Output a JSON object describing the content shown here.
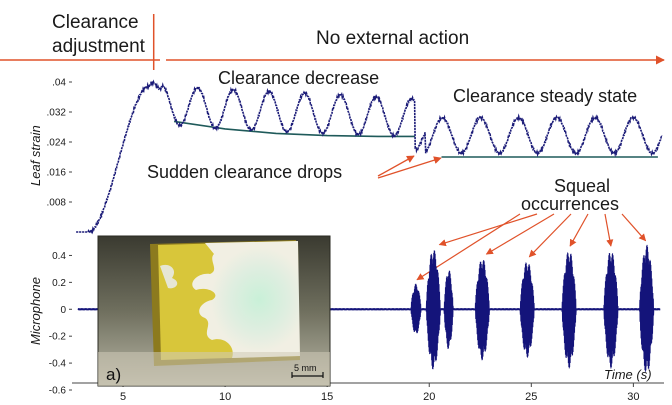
{
  "chart_data": {
    "type": "line",
    "x_axis": {
      "label": "Time (s)",
      "range": [
        2.5,
        31.5
      ],
      "ticks": [
        5,
        10,
        15,
        20,
        25,
        30
      ]
    },
    "annotations": {
      "phase_1": "Clearance\nadjustment",
      "phase_2": "No external action",
      "phase_boundary_time": 6.5,
      "clearance_decrease": "Clearance decrease",
      "clearance_steady": "Clearance steady state",
      "sudden_drops": "Sudden clearance drops",
      "squeal": "Squeal\noccurrences",
      "squeal_times": [
        19.4,
        20.5,
        22.8,
        24.9,
        26.9,
        28.9,
        30.6
      ]
    },
    "panels": [
      {
        "id": "leaf_strain",
        "ylabel": "Leaf strain",
        "ylim": [
          0,
          0.04
        ],
        "yticks": [
          0.04,
          0.032,
          0.024,
          0.016,
          0.008
        ],
        "ytick_labels": [
          ".04",
          ".032",
          ".024",
          ".016",
          ".008"
        ],
        "color": "#1c1c78",
        "envelope_color": "#1f5a5a",
        "series": {
          "baseline": 0.0,
          "rise": {
            "start": 3.3,
            "end": 6.3,
            "top": 0.039
          },
          "plateau_end": 6.9,
          "oscillation_decrease": {
            "start": 6.9,
            "end": 19.3,
            "period": 1.75,
            "peak_start": 0.039,
            "peak_end": 0.0355,
            "trough_start": 0.0295,
            "trough_end": 0.0255
          },
          "sudden_drop": {
            "time": 19.4,
            "value": 0.0218
          },
          "oscillation_steady": {
            "start": 19.8,
            "end": 31.3,
            "period": 1.87,
            "peak": 0.0305,
            "trough": 0.021
          }
        },
        "envelope_decrease": {
          "x": [
            7.5,
            10,
            12.5,
            15,
            17.5,
            19.3
          ],
          "y": [
            0.0295,
            0.0275,
            0.0263,
            0.0257,
            0.0255,
            0.0255
          ]
        },
        "envelope_steady": {
          "x": [
            20.6,
            31.2
          ],
          "y": [
            0.02,
            0.02
          ]
        }
      },
      {
        "id": "microphone",
        "ylabel": "Microphone",
        "ylim": [
          -0.6,
          0.5
        ],
        "yticks": [
          0.4,
          0.2,
          0,
          -0.2,
          -0.4,
          -0.6
        ],
        "ytick_labels": [
          "0.4",
          "0.2",
          "0",
          "-0.2",
          "-0.4",
          "-0.6"
        ],
        "color": "#14147a",
        "bursts": [
          {
            "center": 19.35,
            "width": 0.5,
            "amp": 0.19
          },
          {
            "center": 20.2,
            "width": 0.7,
            "amp": 0.45
          },
          {
            "center": 20.95,
            "width": 0.45,
            "amp": 0.3
          },
          {
            "center": 22.6,
            "width": 0.7,
            "amp": 0.38
          },
          {
            "center": 24.8,
            "width": 0.7,
            "amp": 0.36
          },
          {
            "center": 26.85,
            "width": 0.7,
            "amp": 0.44
          },
          {
            "center": 28.9,
            "width": 0.7,
            "amp": 0.44
          },
          {
            "center": 30.65,
            "width": 0.7,
            "amp": 0.48
          }
        ]
      }
    ],
    "inset": {
      "label": "a)",
      "scale_bar": "5 mm"
    }
  }
}
